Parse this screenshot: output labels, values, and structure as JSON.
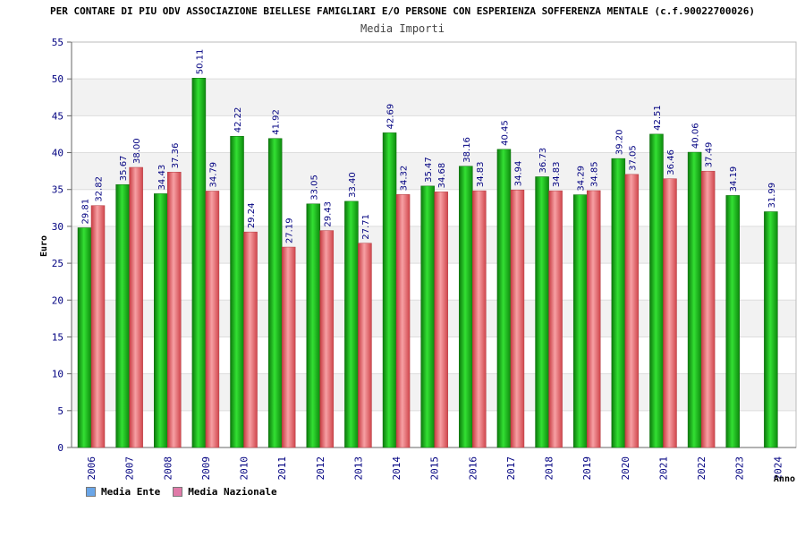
{
  "title": "PER CONTARE DI PIU ODV ASSOCIAZIONE BIELLESE FAMIGLIARI E/O PERSONE CON ESPERIENZA SOFFERENZA MENTALE (c.f.90022700026)",
  "subtitle": "Media Importi",
  "legend": [
    {
      "label": "Media Ente",
      "swatch_color": "#6aa6e8"
    },
    {
      "label": "Media Nazionale",
      "swatch_color": "#e07aa8"
    }
  ],
  "chart_data": {
    "type": "bar",
    "title": "Media Importi",
    "xlabel": "Anno",
    "ylabel": "Euro",
    "ylim": [
      0,
      55
    ],
    "yticks": [
      0,
      5,
      10,
      15,
      20,
      25,
      30,
      35,
      40,
      45,
      50,
      55
    ],
    "grid": true,
    "legend_position": "bottom-left",
    "categories": [
      "2006",
      "2007",
      "2008",
      "2009",
      "2010",
      "2011",
      "2012",
      "2013",
      "2014",
      "2015",
      "2016",
      "2017",
      "2018",
      "2019",
      "2020",
      "2021",
      "2022",
      "2023",
      "2024"
    ],
    "series": [
      {
        "name": "Media Ente",
        "color": "#19c619",
        "values": [
          29.81,
          35.67,
          34.43,
          50.11,
          42.22,
          41.92,
          33.05,
          33.4,
          42.69,
          35.47,
          38.16,
          40.45,
          36.73,
          34.29,
          39.2,
          42.51,
          40.06,
          34.19,
          31.99
        ],
        "labels": [
          "29.81",
          "35.67",
          "34.43",
          "50.11",
          "42.22",
          "41.92",
          "33.05",
          "33.40",
          "42.69",
          "35.47",
          "38.16",
          "40.45",
          "36.73",
          "34.29",
          "39.20",
          "42.51",
          "40.06",
          "34.19",
          "31.99"
        ]
      },
      {
        "name": "Media Nazionale",
        "color": "#e8585f",
        "values": [
          32.82,
          38.0,
          37.36,
          34.79,
          29.24,
          27.19,
          29.43,
          27.71,
          34.32,
          34.68,
          34.83,
          34.94,
          34.83,
          34.85,
          37.05,
          36.46,
          37.49,
          null,
          null
        ],
        "labels": [
          "32.82",
          "38.00",
          "37.36",
          "34.79",
          "29.24",
          "27.19",
          "29.43",
          "27.71",
          "34.32",
          "34.68",
          "34.83",
          "34.94",
          "34.83",
          "34.85",
          "37.05",
          "36.46",
          "37.49",
          null,
          null
        ]
      }
    ]
  }
}
